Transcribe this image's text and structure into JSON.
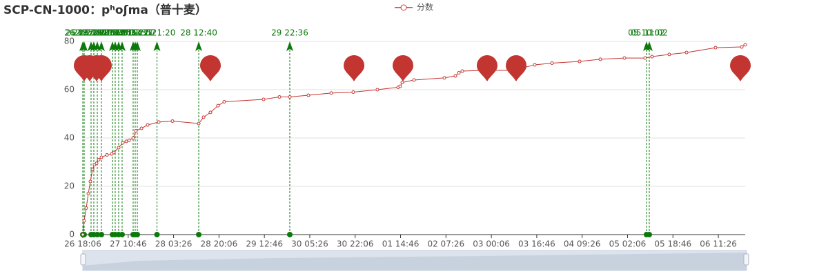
{
  "chart_data": {
    "type": "line",
    "title": "SCP-CN-1000：pʰoʃma（普十麦）",
    "x": [
      0,
      30,
      76,
      122,
      167,
      213,
      258,
      304,
      350,
      410,
      532,
      638,
      684,
      790,
      882,
      958,
      1018,
      1110,
      1170,
      1292,
      1429,
      1672,
      1976,
      2554,
      2660,
      2812,
      2979,
      3116,
      3982,
      4332,
      4560,
      4970,
      5472,
      5958,
      6490,
      6946,
      6992,
      7038,
      7296,
      7965,
      8208,
      8284,
      8360,
      8816,
      9470,
      9956,
      10336,
      10944,
      11400,
      11932,
      12388,
      12540,
      12920,
      13300,
      13938,
      14516,
      14592
    ],
    "series": [
      {
        "name": "分数",
        "color": "#c23531",
        "values": [
          0,
          5.7,
          11,
          17,
          22,
          27,
          29,
          29.5,
          31,
          32,
          33,
          33.4,
          34,
          36,
          38,
          38.6,
          39,
          40,
          43,
          44,
          45.4,
          46.6,
          47,
          46,
          48.6,
          50.6,
          53.4,
          55,
          56,
          57,
          57,
          57.7,
          58.6,
          59,
          60,
          61,
          61.4,
          63,
          64,
          64.9,
          65.7,
          67,
          67.7,
          68,
          68,
          70.3,
          71,
          71.7,
          72.6,
          73.1,
          73.1,
          73.7,
          74.6,
          75.4,
          77.4,
          77.7,
          78.6
        ]
      }
    ],
    "xlim": [
      0,
      14592
    ],
    "xticks": [
      {
        "value": 0,
        "label": "26 18:06"
      },
      {
        "value": 1000,
        "label": "27 10:46"
      },
      {
        "value": 2000,
        "label": "28 03:26"
      },
      {
        "value": 3000,
        "label": "28 20:06"
      },
      {
        "value": 4000,
        "label": "29 12:46"
      },
      {
        "value": 5000,
        "label": "30 05:26"
      },
      {
        "value": 6000,
        "label": "30 22:06"
      },
      {
        "value": 7000,
        "label": "01 14:46"
      },
      {
        "value": 8000,
        "label": "02 07:26"
      },
      {
        "value": 9000,
        "label": "03 00:06"
      },
      {
        "value": 10000,
        "label": "03 16:46"
      },
      {
        "value": 11000,
        "label": "04 09:26"
      },
      {
        "value": 12000,
        "label": "05 02:06"
      },
      {
        "value": 13000,
        "label": "05 18:46"
      },
      {
        "value": 14000,
        "label": "06 11:26"
      }
    ],
    "ylim": [
      0,
      80
    ],
    "yticks": [
      0,
      20,
      40,
      60,
      80
    ],
    "grid": true,
    "mark_points": {
      "color": "#c23531",
      "x": [
        30,
        152,
        304,
        410,
        2812,
        5974,
        7053,
        8907,
        9546,
        14486
      ]
    },
    "mark_lines": {
      "color": "#0b7a0b",
      "lines": [
        {
          "x": 0,
          "label": "26 18:06"
        },
        {
          "x": 30,
          "label": "26 18:36"
        },
        {
          "x": 182,
          "label": "26 21:08"
        },
        {
          "x": 243,
          "label": "26 22:09"
        },
        {
          "x": 319,
          "label": "26 23:25"
        },
        {
          "x": 410,
          "label": "27 00:56"
        },
        {
          "x": 654,
          "label": "27 05:00"
        },
        {
          "x": 714,
          "label": "27 06:00"
        },
        {
          "x": 790,
          "label": "27 07:16"
        },
        {
          "x": 866,
          "label": "27 08:32"
        },
        {
          "x": 1109,
          "label": "27 12:35"
        },
        {
          "x": 1155,
          "label": "27 13:21"
        },
        {
          "x": 1201,
          "label": "27 14:07"
        },
        {
          "x": 1634,
          "label": "27 21:20"
        },
        {
          "x": 2554,
          "label": "28 12:40"
        },
        {
          "x": 4560,
          "label": "29 22:36"
        },
        {
          "x": 12418,
          "label": "05 10:02"
        },
        {
          "x": 12479,
          "label": "05 11:02"
        }
      ]
    }
  }
}
